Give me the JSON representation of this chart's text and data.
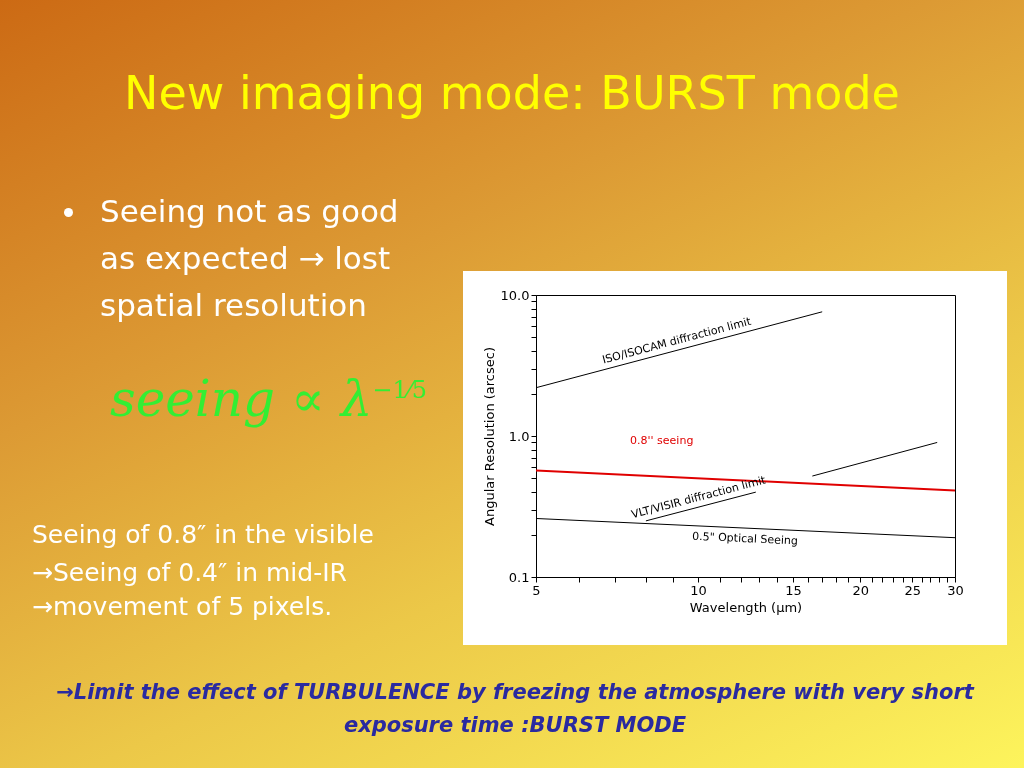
{
  "chart_data": {
    "type": "line",
    "title": "New imaging mode: BURST mode",
    "xlabel": "Wavelength (μm)",
    "ylabel": "Angular Resolution (arcsec)",
    "log": "xy",
    "xlim": [
      5,
      30
    ],
    "ylim": [
      0.1,
      10
    ],
    "xticks": [
      5,
      {
        "value": 6,
        "label": null
      },
      {
        "value": 7,
        "label": null
      },
      {
        "value": 8,
        "label": null
      },
      {
        "value": 9,
        "label": null
      },
      10,
      {
        "value": 11,
        "label": null
      },
      {
        "value": 12,
        "label": null
      },
      {
        "value": 13,
        "label": null
      },
      {
        "value": 14,
        "label": null
      },
      15,
      {
        "value": 16,
        "label": null
      },
      {
        "value": 17,
        "label": null
      },
      {
        "value": 18,
        "label": null
      },
      {
        "value": 19,
        "label": null
      },
      20,
      {
        "value": 21,
        "label": null
      },
      {
        "value": 22,
        "label": null
      },
      {
        "value": 23,
        "label": null
      },
      {
        "value": 24,
        "label": null
      },
      25,
      {
        "value": 26,
        "label": null
      },
      {
        "value": 27,
        "label": null
      },
      {
        "value": 28,
        "label": null
      },
      {
        "value": 29,
        "label": null
      },
      30
    ],
    "yticks": [
      0.1,
      {
        "value": 0.2,
        "label": null
      },
      {
        "value": 0.3,
        "label": null
      },
      {
        "value": 0.4,
        "label": null
      },
      {
        "value": 0.5,
        "label": null
      },
      {
        "value": 0.6,
        "label": null
      },
      {
        "value": 0.7,
        "label": null
      },
      {
        "value": 0.8,
        "label": null
      },
      {
        "value": 0.9,
        "label": null
      },
      {
        "value": 1,
        "label": "1.0"
      },
      {
        "value": 2,
        "label": null
      },
      {
        "value": 3,
        "label": null
      },
      {
        "value": 4,
        "label": null
      },
      {
        "value": 5,
        "label": null
      },
      {
        "value": 6,
        "label": null
      },
      {
        "value": 7,
        "label": null
      },
      {
        "value": 8,
        "label": null
      },
      {
        "value": 9,
        "label": null
      },
      {
        "value": 10,
        "label": "10.0"
      }
    ],
    "grid": false,
    "series": [
      {
        "name": "ISO/ISOCAM diffraction limit",
        "color": "#000000",
        "x": [
          5,
          17
        ],
        "values": [
          2.2,
          7.6
        ]
      },
      {
        "name": "0.8'' seeing",
        "color": "#e00000",
        "x": [
          5,
          30
        ],
        "values": [
          0.57,
          0.41
        ]
      },
      {
        "name": "VLT/VISIR diffraction limit",
        "color": "#000000",
        "x": [
          8,
          12.8
        ],
        "values": [
          0.25,
          0.4
        ]
      },
      {
        "color": "#000000",
        "x": [
          16.3,
          27.8
        ],
        "values": [
          0.52,
          0.9
        ]
      },
      {
        "name": "0.5\" Optical Seeing",
        "color": "#000000",
        "x": [
          5,
          30
        ],
        "values": [
          0.26,
          0.19
        ]
      }
    ],
    "annotations": [
      "Seeing not as good as expected → lost spatial resolution",
      "seeing ∝ λ$^{−1⁄5}$",
      "Seeing of 0.8″ in the visible",
      "→Seeing of 0.4″ in mid-IR",
      "→movement of  5 pixels.",
      "→Limit the effect of TURBULENCE by freezing the atmosphere with very short exposure time :BURST MODE"
    ]
  }
}
